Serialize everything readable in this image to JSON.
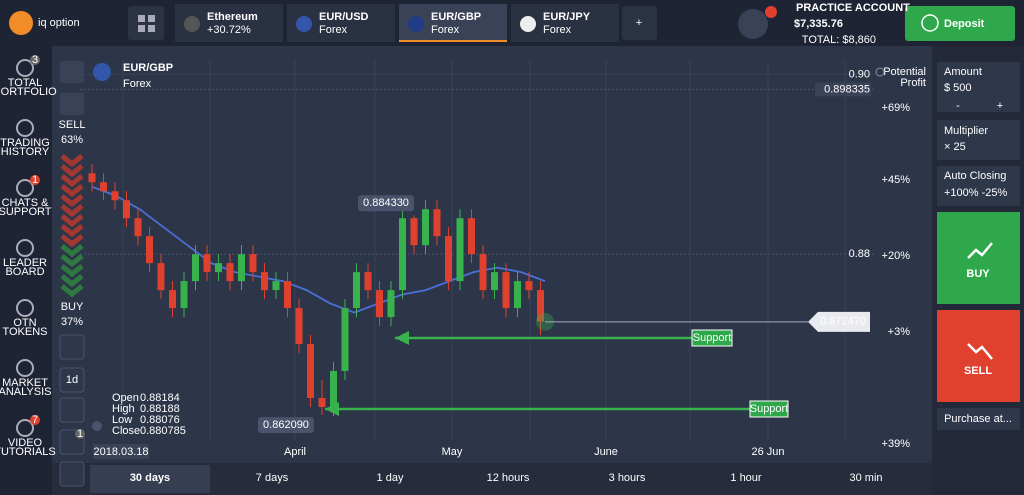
{
  "header": {
    "logo": "iq option",
    "tabs": [
      {
        "name": "Ethereum",
        "sub": "+30.72%"
      },
      {
        "name": "EUR/USD",
        "sub": "Forex"
      },
      {
        "name": "EUR/GBP",
        "sub": "Forex"
      },
      {
        "name": "EUR/JPY",
        "sub": "Forex"
      }
    ],
    "account": {
      "label": "PRACTICE ACCOUNT",
      "balance": "$7,335.76",
      "total": "TOTAL: $8,860"
    },
    "deposit": "Deposit"
  },
  "sidebar": [
    {
      "label": [
        "TOTAL",
        "PORTFOLIO"
      ],
      "badge": "3"
    },
    {
      "label": [
        "TRADING",
        "HISTORY"
      ]
    },
    {
      "label": [
        "CHATS &",
        "SUPPORT"
      ],
      "badge": "1"
    },
    {
      "label": [
        "LEADER",
        "BOARD"
      ]
    },
    {
      "label": [
        "OTN",
        "TOKENS"
      ]
    },
    {
      "label": [
        "MARKET",
        "ANALYSIS"
      ]
    },
    {
      "label": [
        "VIDEO",
        "TUTORIALS"
      ],
      "badge": "7"
    }
  ],
  "chart": {
    "asset": "EUR/GBP",
    "market": "Forex",
    "sell_label": "SELL",
    "sell_pct": "63%",
    "buy_label": "BUY",
    "buy_pct": "37%",
    "timeframe": "1d",
    "tool_badge": "1",
    "potential_profit": [
      "Potential",
      "Profit"
    ],
    "ylim": [
      0.8571,
      0.9016
    ],
    "price_ticks": [
      {
        "value": 0.9,
        "label": "0.90"
      },
      0.898335,
      0.88
    ],
    "high_marker": {
      "value": 0.88433,
      "label": "0.884330"
    },
    "low_marker": {
      "value": 0.86209,
      "label": "0.862090"
    },
    "current_price": {
      "value": 0.87247,
      "label": "0.872470"
    },
    "profit_labels": [
      "+69%",
      "+45%",
      "+20%",
      "+3%",
      "+39%"
    ],
    "support_labels": [
      "Support",
      "Support"
    ],
    "start_date": "2018.03.18",
    "x_labels": [
      "April",
      "May",
      "June",
      "26 Jun"
    ],
    "ohlc": [
      {
        "label": "Open",
        "value": 0.88184
      },
      {
        "label": "High",
        "value": 0.88188
      },
      {
        "label": "Low",
        "value": 0.88076
      },
      {
        "label": "Close",
        "value": 0.880785
      }
    ],
    "candles": [
      [
        0.889,
        0.89,
        0.887,
        0.888
      ],
      [
        0.888,
        0.889,
        0.886,
        0.887
      ],
      [
        0.887,
        0.888,
        0.885,
        0.886
      ],
      [
        0.886,
        0.887,
        0.883,
        0.884
      ],
      [
        0.884,
        0.885,
        0.881,
        0.882
      ],
      [
        0.882,
        0.883,
        0.878,
        0.879
      ],
      [
        0.879,
        0.88,
        0.875,
        0.876
      ],
      [
        0.876,
        0.877,
        0.873,
        0.874
      ],
      [
        0.874,
        0.878,
        0.873,
        0.877
      ],
      [
        0.877,
        0.881,
        0.876,
        0.88
      ],
      [
        0.88,
        0.881,
        0.877,
        0.878
      ],
      [
        0.878,
        0.88,
        0.877,
        0.879
      ],
      [
        0.879,
        0.88,
        0.876,
        0.877
      ],
      [
        0.877,
        0.881,
        0.876,
        0.88
      ],
      [
        0.88,
        0.881,
        0.877,
        0.878
      ],
      [
        0.878,
        0.879,
        0.875,
        0.876
      ],
      [
        0.876,
        0.878,
        0.875,
        0.877
      ],
      [
        0.877,
        0.878,
        0.873,
        0.874
      ],
      [
        0.874,
        0.875,
        0.869,
        0.87
      ],
      [
        0.87,
        0.871,
        0.863,
        0.864
      ],
      [
        0.864,
        0.866,
        0.8621,
        0.863
      ],
      [
        0.863,
        0.868,
        0.862,
        0.867
      ],
      [
        0.867,
        0.875,
        0.866,
        0.874
      ],
      [
        0.874,
        0.879,
        0.873,
        0.878
      ],
      [
        0.878,
        0.879,
        0.875,
        0.876
      ],
      [
        0.876,
        0.877,
        0.872,
        0.873
      ],
      [
        0.873,
        0.877,
        0.872,
        0.876
      ],
      [
        0.876,
        0.885,
        0.875,
        0.884
      ],
      [
        0.884,
        0.8843,
        0.88,
        0.881
      ],
      [
        0.881,
        0.886,
        0.88,
        0.885
      ],
      [
        0.885,
        0.886,
        0.881,
        0.882
      ],
      [
        0.882,
        0.883,
        0.876,
        0.877
      ],
      [
        0.877,
        0.885,
        0.876,
        0.884
      ],
      [
        0.884,
        0.885,
        0.879,
        0.88
      ],
      [
        0.88,
        0.881,
        0.875,
        0.876
      ],
      [
        0.876,
        0.879,
        0.875,
        0.878
      ],
      [
        0.878,
        0.879,
        0.873,
        0.874
      ],
      [
        0.874,
        0.878,
        0.873,
        0.877
      ],
      [
        0.877,
        0.878,
        0.875,
        0.876
      ],
      [
        0.876,
        0.877,
        0.871,
        0.8725
      ]
    ],
    "ma": [
      0.8875,
      0.8865,
      0.885,
      0.883,
      0.881,
      0.879,
      0.878,
      0.8775,
      0.877,
      0.876,
      0.8745,
      0.8735,
      0.8745,
      0.8755,
      0.876,
      0.877,
      0.878,
      0.8785,
      0.878,
      0.877
    ]
  },
  "periods": [
    "30 days",
    "7 days",
    "1 day",
    "12 hours",
    "3 hours",
    "1 hour",
    "30 min"
  ],
  "trade_panel": {
    "amount_label": "Amount",
    "amount": "$ 500",
    "minus": "-",
    "plus": "+",
    "multiplier_label": "Multiplier",
    "multiplier": "× 25",
    "auto_label": "Auto Closing",
    "auto": "+100% -25%",
    "buy": "BUY",
    "sell": "SELL",
    "purchase": "Purchase at..."
  }
}
